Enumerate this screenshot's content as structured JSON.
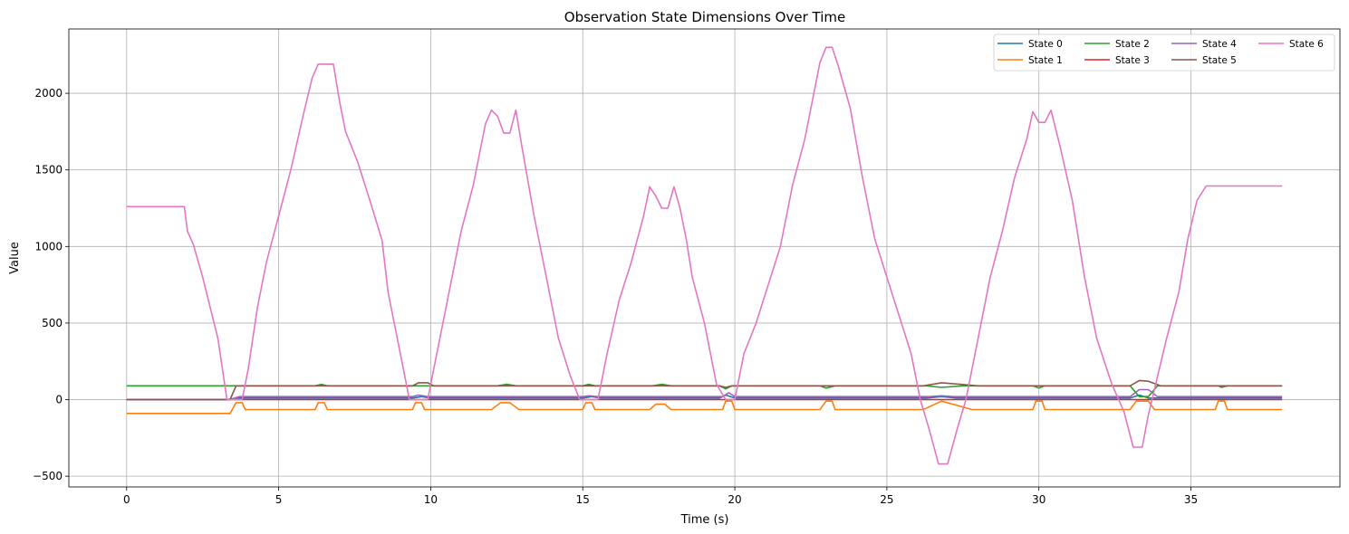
{
  "chart_data": {
    "type": "line",
    "title": "Observation State Dimensions Over Time",
    "xlabel": "Time (s)",
    "ylabel": "Value",
    "xlim": [
      -1.9,
      39.9
    ],
    "ylim": [
      -570,
      2420
    ],
    "xticks": [
      0,
      5,
      10,
      15,
      20,
      25,
      30,
      35
    ],
    "yticks": [
      -500,
      0,
      500,
      1000,
      1500,
      2000
    ],
    "ytick_labels": [
      "−500",
      "0",
      "500",
      "1000",
      "1500",
      "2000"
    ],
    "grid": true,
    "legend_position": "top-right",
    "legend_columns": 4,
    "series": [
      {
        "name": "State 0",
        "color": "#1f77b4",
        "points": [
          [
            0,
            0
          ],
          [
            3.3,
            0
          ],
          [
            3.6,
            10
          ],
          [
            3.9,
            10
          ],
          [
            9.4,
            10
          ],
          [
            9.7,
            20
          ],
          [
            10,
            10
          ],
          [
            15,
            10
          ],
          [
            15.3,
            20
          ],
          [
            15.6,
            10
          ],
          [
            19.5,
            10
          ],
          [
            19.7,
            30
          ],
          [
            20,
            10
          ],
          [
            26.3,
            10
          ],
          [
            26.8,
            20
          ],
          [
            27.3,
            10
          ],
          [
            33,
            10
          ],
          [
            33.3,
            30
          ],
          [
            33.6,
            10
          ],
          [
            38,
            10
          ]
        ]
      },
      {
        "name": "State 1",
        "color": "#ff7f0e",
        "points": [
          [
            0,
            -90
          ],
          [
            3.4,
            -90
          ],
          [
            3.6,
            -20
          ],
          [
            3.8,
            -20
          ],
          [
            3.9,
            -65
          ],
          [
            6.2,
            -65
          ],
          [
            6.3,
            -20
          ],
          [
            6.5,
            -20
          ],
          [
            6.6,
            -65
          ],
          [
            9.4,
            -65
          ],
          [
            9.5,
            -20
          ],
          [
            9.7,
            -20
          ],
          [
            9.8,
            -65
          ],
          [
            12,
            -65
          ],
          [
            12.3,
            -20
          ],
          [
            12.6,
            -20
          ],
          [
            12.9,
            -65
          ],
          [
            15,
            -65
          ],
          [
            15.1,
            -20
          ],
          [
            15.3,
            -20
          ],
          [
            15.4,
            -65
          ],
          [
            17.2,
            -65
          ],
          [
            17.4,
            -30
          ],
          [
            17.7,
            -30
          ],
          [
            17.9,
            -65
          ],
          [
            19.6,
            -65
          ],
          [
            19.7,
            -10
          ],
          [
            19.9,
            -10
          ],
          [
            20,
            -65
          ],
          [
            22.8,
            -65
          ],
          [
            23,
            -10
          ],
          [
            23.2,
            -10
          ],
          [
            23.3,
            -65
          ],
          [
            26.2,
            -65
          ],
          [
            26.8,
            -10
          ],
          [
            27.8,
            -65
          ],
          [
            29.8,
            -65
          ],
          [
            29.9,
            -10
          ],
          [
            30.1,
            -10
          ],
          [
            30.2,
            -65
          ],
          [
            33,
            -65
          ],
          [
            33.2,
            -10
          ],
          [
            33.6,
            -10
          ],
          [
            33.8,
            -65
          ],
          [
            35.8,
            -65
          ],
          [
            35.9,
            -10
          ],
          [
            36.1,
            -10
          ],
          [
            36.2,
            -65
          ],
          [
            38,
            -65
          ]
        ]
      },
      {
        "name": "State 2",
        "color": "#2ca02c",
        "points": [
          [
            0,
            90
          ],
          [
            6.2,
            90
          ],
          [
            6.4,
            100
          ],
          [
            6.6,
            90
          ],
          [
            12.2,
            90
          ],
          [
            12.5,
            100
          ],
          [
            12.8,
            90
          ],
          [
            15,
            90
          ],
          [
            15.2,
            100
          ],
          [
            15.4,
            90
          ],
          [
            17.3,
            90
          ],
          [
            17.6,
            100
          ],
          [
            17.9,
            90
          ],
          [
            19.5,
            90
          ],
          [
            19.7,
            70
          ],
          [
            19.9,
            90
          ],
          [
            22.8,
            90
          ],
          [
            23,
            75
          ],
          [
            23.3,
            90
          ],
          [
            26.3,
            90
          ],
          [
            26.8,
            80
          ],
          [
            27.5,
            90
          ],
          [
            29.8,
            90
          ],
          [
            30,
            75
          ],
          [
            30.2,
            90
          ],
          [
            33,
            90
          ],
          [
            33.3,
            20
          ],
          [
            33.6,
            20
          ],
          [
            33.9,
            90
          ],
          [
            35.9,
            90
          ],
          [
            36,
            80
          ],
          [
            36.2,
            90
          ],
          [
            38,
            90
          ]
        ]
      },
      {
        "name": "State 3",
        "color": "#d62728",
        "points": [
          [
            0,
            0
          ],
          [
            38,
            0
          ]
        ]
      },
      {
        "name": "State 4",
        "color": "#9467bd",
        "points": [
          [
            0,
            0
          ],
          [
            3.4,
            0
          ],
          [
            3.7,
            20
          ],
          [
            9.4,
            20
          ],
          [
            9.6,
            30
          ],
          [
            9.9,
            20
          ],
          [
            15,
            20
          ],
          [
            15.2,
            25
          ],
          [
            15.5,
            20
          ],
          [
            19.6,
            20
          ],
          [
            19.8,
            45
          ],
          [
            20,
            20
          ],
          [
            26.4,
            20
          ],
          [
            26.8,
            25
          ],
          [
            27.2,
            20
          ],
          [
            33,
            20
          ],
          [
            33.3,
            65
          ],
          [
            33.6,
            65
          ],
          [
            33.9,
            20
          ],
          [
            38,
            20
          ]
        ]
      },
      {
        "name": "State 5",
        "color": "#8c564b",
        "points": [
          [
            0,
            0
          ],
          [
            3.4,
            0
          ],
          [
            3.6,
            90
          ],
          [
            9.4,
            90
          ],
          [
            9.6,
            110
          ],
          [
            9.9,
            110
          ],
          [
            10.1,
            90
          ],
          [
            19.5,
            90
          ],
          [
            19.7,
            80
          ],
          [
            19.9,
            90
          ],
          [
            26.2,
            90
          ],
          [
            26.8,
            110
          ],
          [
            27.4,
            100
          ],
          [
            28,
            90
          ],
          [
            33,
            90
          ],
          [
            33.3,
            125
          ],
          [
            33.6,
            120
          ],
          [
            34,
            90
          ],
          [
            38,
            90
          ]
        ]
      },
      {
        "name": "State 6",
        "color": "#e377c2",
        "points": [
          [
            0,
            1260
          ],
          [
            1.9,
            1260
          ],
          [
            2,
            1100
          ],
          [
            2.2,
            1010
          ],
          [
            2.5,
            800
          ],
          [
            3,
            400
          ],
          [
            3.3,
            0
          ],
          [
            3.5,
            0
          ],
          [
            3.8,
            0
          ],
          [
            4,
            200
          ],
          [
            4.3,
            600
          ],
          [
            4.6,
            900
          ],
          [
            5,
            1200
          ],
          [
            5.4,
            1500
          ],
          [
            5.8,
            1850
          ],
          [
            6.1,
            2100
          ],
          [
            6.3,
            2190
          ],
          [
            6.6,
            2190
          ],
          [
            6.8,
            2190
          ],
          [
            7,
            1950
          ],
          [
            7.2,
            1750
          ],
          [
            7.6,
            1550
          ],
          [
            8,
            1300
          ],
          [
            8.4,
            1040
          ],
          [
            8.6,
            700
          ],
          [
            9,
            300
          ],
          [
            9.3,
            0
          ],
          [
            9.6,
            0
          ],
          [
            9.9,
            0
          ],
          [
            10.2,
            300
          ],
          [
            10.6,
            700
          ],
          [
            11,
            1100
          ],
          [
            11.4,
            1400
          ],
          [
            11.8,
            1800
          ],
          [
            12,
            1890
          ],
          [
            12.2,
            1850
          ],
          [
            12.4,
            1740
          ],
          [
            12.6,
            1740
          ],
          [
            12.8,
            1890
          ],
          [
            13,
            1650
          ],
          [
            13.4,
            1200
          ],
          [
            13.8,
            800
          ],
          [
            14.2,
            400
          ],
          [
            14.6,
            150
          ],
          [
            14.9,
            0
          ],
          [
            15.2,
            0
          ],
          [
            15.5,
            0
          ],
          [
            15.8,
            300
          ],
          [
            16.2,
            650
          ],
          [
            16.6,
            900
          ],
          [
            17,
            1200
          ],
          [
            17.2,
            1390
          ],
          [
            17.4,
            1330
          ],
          [
            17.6,
            1250
          ],
          [
            17.8,
            1250
          ],
          [
            18,
            1390
          ],
          [
            18.2,
            1250
          ],
          [
            18.4,
            1050
          ],
          [
            18.6,
            800
          ],
          [
            19,
            500
          ],
          [
            19.4,
            100
          ],
          [
            19.7,
            0
          ],
          [
            20,
            0
          ],
          [
            20.3,
            300
          ],
          [
            20.7,
            500
          ],
          [
            21.1,
            750
          ],
          [
            21.5,
            1000
          ],
          [
            21.9,
            1400
          ],
          [
            22.3,
            1700
          ],
          [
            22.6,
            2000
          ],
          [
            22.8,
            2200
          ],
          [
            23,
            2300
          ],
          [
            23.2,
            2300
          ],
          [
            23.4,
            2180
          ],
          [
            23.8,
            1900
          ],
          [
            24.2,
            1450
          ],
          [
            24.6,
            1050
          ],
          [
            25,
            800
          ],
          [
            25.4,
            550
          ],
          [
            25.8,
            300
          ],
          [
            26.1,
            0
          ],
          [
            26.4,
            -200
          ],
          [
            26.7,
            -420
          ],
          [
            27,
            -420
          ],
          [
            27.3,
            -200
          ],
          [
            27.6,
            0
          ],
          [
            28,
            400
          ],
          [
            28.4,
            800
          ],
          [
            28.8,
            1100
          ],
          [
            29.2,
            1450
          ],
          [
            29.6,
            1700
          ],
          [
            29.8,
            1880
          ],
          [
            30,
            1810
          ],
          [
            30.2,
            1810
          ],
          [
            30.4,
            1890
          ],
          [
            30.7,
            1650
          ],
          [
            31.1,
            1300
          ],
          [
            31.5,
            800
          ],
          [
            31.9,
            400
          ],
          [
            32.4,
            100
          ],
          [
            32.8,
            -80
          ],
          [
            33.1,
            -310
          ],
          [
            33.4,
            -310
          ],
          [
            33.6,
            -100
          ],
          [
            33.9,
            150
          ],
          [
            34.2,
            400
          ],
          [
            34.6,
            700
          ],
          [
            34.9,
            1050
          ],
          [
            35.2,
            1300
          ],
          [
            35.5,
            1395
          ],
          [
            36,
            1395
          ],
          [
            38,
            1395
          ]
        ]
      }
    ]
  }
}
